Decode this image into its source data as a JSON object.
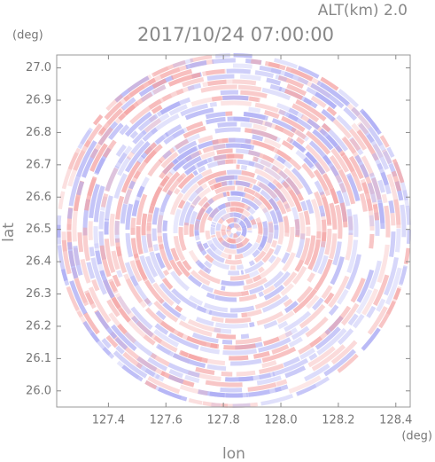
{
  "chart_data": {
    "type": "radar-ppi",
    "title": "2017/10/24 07:00:00",
    "subtitle": "ALT(km) 2.0",
    "x_label": "lon",
    "y_label": "lat",
    "x_unit": "(deg)",
    "y_unit": "(deg)",
    "xlim": [
      127.22,
      128.45
    ],
    "ylim": [
      25.95,
      27.04
    ],
    "xticks": [
      127.4,
      127.6,
      127.8,
      {
        "value": 128,
        "label": "128.0"
      },
      128.2,
      128.4
    ],
    "yticks": [
      {
        "value": 26,
        "label": "26.0"
      },
      26.1,
      26.2,
      26.3,
      26.4,
      26.5,
      26.6,
      26.7,
      26.8,
      26.9,
      {
        "value": 27,
        "label": "27.0"
      }
    ]
  }
}
